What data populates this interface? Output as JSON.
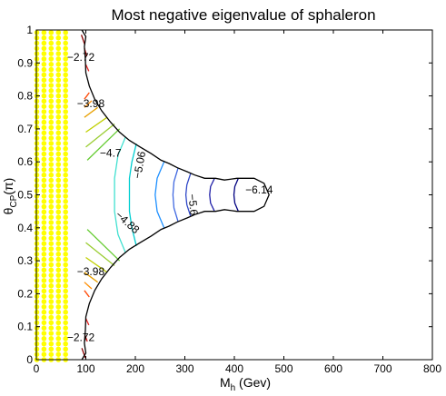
{
  "chart_data": {
    "type": "contour",
    "title": "Most negative eigenvalue of sphaleron",
    "xlabel": {
      "main": "M",
      "sub": "h",
      "unit": " (Gev)"
    },
    "ylabel": {
      "main": "θ",
      "sub": "CP",
      "unit": "(π)"
    },
    "xlim": [
      0,
      800
    ],
    "ylim": [
      0,
      1
    ],
    "xticks": [
      "0",
      "100",
      "200",
      "300",
      "400",
      "500",
      "600",
      "700",
      "800"
    ],
    "yticks": [
      "0",
      "0.1",
      "0.2",
      "0.3",
      "0.4",
      "0.5",
      "0.6",
      "0.7",
      "0.8",
      "0.9",
      "1"
    ],
    "grid": false,
    "marked_region": {
      "x_range": [
        0,
        60
      ],
      "color": "#ffff00",
      "marker": "dot"
    },
    "boundary": [
      [
        92,
        1.0
      ],
      [
        100,
        0.98
      ],
      [
        97,
        0.95
      ],
      [
        99,
        0.91
      ],
      [
        100,
        0.87
      ],
      [
        107,
        0.83
      ],
      [
        118,
        0.79
      ],
      [
        132,
        0.755
      ],
      [
        150,
        0.72
      ],
      [
        168,
        0.69
      ],
      [
        188,
        0.665
      ],
      [
        210,
        0.645
      ],
      [
        232,
        0.625
      ],
      [
        252,
        0.605
      ],
      [
        268,
        0.595
      ],
      [
        285,
        0.582
      ],
      [
        305,
        0.57
      ],
      [
        320,
        0.56
      ],
      [
        340,
        0.55
      ],
      [
        362,
        0.55
      ],
      [
        380,
        0.545
      ],
      [
        405,
        0.55
      ],
      [
        440,
        0.55
      ],
      [
        460,
        0.535
      ],
      [
        470,
        0.5
      ],
      [
        460,
        0.465
      ],
      [
        440,
        0.45
      ],
      [
        405,
        0.45
      ],
      [
        380,
        0.455
      ],
      [
        362,
        0.45
      ],
      [
        340,
        0.45
      ],
      [
        320,
        0.44
      ],
      [
        305,
        0.43
      ],
      [
        285,
        0.418
      ],
      [
        268,
        0.405
      ],
      [
        252,
        0.395
      ],
      [
        232,
        0.375
      ],
      [
        210,
        0.355
      ],
      [
        188,
        0.335
      ],
      [
        168,
        0.31
      ],
      [
        150,
        0.28
      ],
      [
        132,
        0.245
      ],
      [
        118,
        0.21
      ],
      [
        107,
        0.17
      ],
      [
        100,
        0.13
      ],
      [
        99,
        0.09
      ],
      [
        97,
        0.05
      ],
      [
        100,
        0.02
      ],
      [
        92,
        0.0
      ]
    ],
    "contours": [
      {
        "color": "#8b0000",
        "segments": [
          [
            [
              91,
              0.985
            ],
            [
              98,
              0.955
            ]
          ],
          [
            [
              92,
              0.035
            ],
            [
              99,
              0.005
            ]
          ]
        ]
      },
      {
        "color": "#cc1010",
        "segments": [
          [
            [
              97,
              0.945
            ],
            [
              102,
              0.92
            ]
          ],
          [
            [
              98,
              0.075
            ],
            [
              103,
              0.055
            ]
          ]
        ]
      },
      {
        "color": "#e02020",
        "segments": [
          [
            [
              100,
              0.895
            ],
            [
              106,
              0.875
            ]
          ],
          [
            [
              100,
              0.125
            ],
            [
              106,
              0.105
            ]
          ]
        ]
      },
      {
        "color": "#ff4500",
        "segments": [
          [
            [
              97,
              0.79
            ],
            [
              107,
              0.81
            ]
          ],
          [
            [
              97,
              0.21
            ],
            [
              107,
              0.19
            ]
          ]
        ]
      },
      {
        "color": "#ff8c00",
        "segments": [
          [
            [
              97,
              0.765
            ],
            [
              112,
              0.785
            ]
          ],
          [
            [
              97,
              0.235
            ],
            [
              112,
              0.215
            ]
          ]
        ]
      },
      {
        "color": "#e8a000",
        "segments": [
          [
            [
              97,
              0.735
            ],
            [
              124,
              0.765
            ]
          ],
          [
            [
              97,
              0.265
            ],
            [
              124,
              0.235
            ]
          ]
        ]
      },
      {
        "color": "#c0d000",
        "segments": [
          [
            [
              100,
              0.69
            ],
            [
              143,
              0.735
            ]
          ],
          [
            [
              100,
              0.31
            ],
            [
              143,
              0.265
            ]
          ]
        ]
      },
      {
        "color": "#9acd32",
        "segments": [
          [
            [
              100,
              0.645
            ],
            [
              158,
              0.715
            ]
          ],
          [
            [
              100,
              0.355
            ],
            [
              158,
              0.285
            ]
          ]
        ]
      },
      {
        "color": "#66cc33",
        "segments": [
          [
            [
              103,
              0.605
            ],
            [
              168,
              0.7
            ]
          ],
          [
            [
              103,
              0.395
            ],
            [
              168,
              0.3
            ]
          ]
        ]
      },
      {
        "color": "#40e0d0",
        "segments": [
          [
            [
              180,
              0.675
            ],
            [
              165,
              0.62
            ],
            [
              158,
              0.55
            ],
            [
              158,
              0.45
            ],
            [
              165,
              0.38
            ],
            [
              180,
              0.325
            ]
          ]
        ]
      },
      {
        "color": "#00ced1",
        "segments": [
          [
            [
              202,
              0.655
            ],
            [
              193,
              0.6
            ],
            [
              188,
              0.55
            ],
            [
              188,
              0.45
            ],
            [
              193,
              0.4
            ],
            [
              202,
              0.345
            ]
          ]
        ]
      },
      {
        "color": "#1e90ff",
        "segments": [
          [
            [
              258,
              0.6
            ],
            [
              244,
              0.55
            ],
            [
              240,
              0.5
            ],
            [
              244,
              0.45
            ],
            [
              258,
              0.4
            ]
          ]
        ]
      },
      {
        "color": "#4169e1",
        "segments": [
          [
            [
              286,
              0.58
            ],
            [
              278,
              0.54
            ],
            [
              276,
              0.5
            ],
            [
              278,
              0.46
            ],
            [
              286,
              0.42
            ]
          ]
        ]
      },
      {
        "color": "#3048c8",
        "segments": [
          [
            [
              312,
              0.566
            ],
            [
              304,
              0.53
            ],
            [
              302,
              0.5
            ],
            [
              304,
              0.47
            ],
            [
              312,
              0.434
            ]
          ]
        ]
      },
      {
        "color": "#2020a8",
        "segments": [
          [
            [
              360,
              0.55
            ],
            [
              352,
              0.525
            ],
            [
              350,
              0.5
            ],
            [
              352,
              0.475
            ],
            [
              360,
              0.45
            ]
          ]
        ]
      },
      {
        "color": "#000080",
        "segments": [
          [
            [
              408,
              0.55
            ],
            [
              401,
              0.525
            ],
            [
              399,
              0.5
            ],
            [
              401,
              0.475
            ],
            [
              408,
              0.45
            ]
          ]
        ]
      }
    ],
    "labels": [
      {
        "text": "−2.72",
        "x": 90,
        "y": 0.915,
        "angle": 0
      },
      {
        "text": "−3.98",
        "x": 110,
        "y": 0.775,
        "angle": 0
      },
      {
        "text": "−4.7",
        "x": 150,
        "y": 0.625,
        "angle": 0
      },
      {
        "text": "−5.06",
        "x": 210,
        "y": 0.59,
        "angle": -80
      },
      {
        "text": "−4.88",
        "x": 183,
        "y": 0.415,
        "angle": 42
      },
      {
        "text": "−5.6",
        "x": 315,
        "y": 0.47,
        "angle": 85
      },
      {
        "text": "−6.14",
        "x": 450,
        "y": 0.513,
        "angle": 0
      },
      {
        "text": "−3.98",
        "x": 110,
        "y": 0.265,
        "angle": 0
      },
      {
        "text": "−2.72",
        "x": 90,
        "y": 0.065,
        "angle": 0
      }
    ]
  }
}
